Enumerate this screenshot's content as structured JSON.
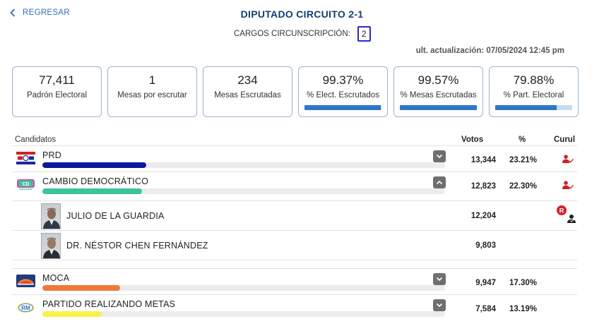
{
  "nav": {
    "back_label": "REGRESAR"
  },
  "header": {
    "title": "DIPUTADO CIRCUITO 2-1",
    "cargos_label": "CARGOS CIRCUNSCRIPCIÓN:",
    "cargos_value": "2",
    "updated": "ult. actualización: 07/05/2024 12:45 pm"
  },
  "stats": [
    {
      "value": "77,411",
      "label": "Padrón Electoral"
    },
    {
      "value": "1",
      "label": "Mesas por escrutar"
    },
    {
      "value": "234",
      "label": "Mesas Escrutadas"
    },
    {
      "value": "99.37%",
      "label": "% Elect. Escrutados",
      "progress": 0.9937
    },
    {
      "value": "99.57%",
      "label": "% Mesas Escrutadas",
      "progress": 0.9957
    },
    {
      "value": "79.88%",
      "label": "% Part. Electoral",
      "progress": 0.7988
    }
  ],
  "table": {
    "col_candidatos": "Candidatos",
    "col_votos": "Votos",
    "col_pct": "%",
    "col_curul": "Curul"
  },
  "parties": [
    {
      "name": "PRD",
      "votes": "13,344",
      "pct": "23.21%",
      "bar_fraction": 0.232,
      "bar_color": "#0a1a9a",
      "logo": "prd-flag-logo",
      "expanded": false,
      "curul_icon": "person-check-icon"
    },
    {
      "name": "CAMBIO DEMOCRÁTICO",
      "votes": "12,823",
      "pct": "22.30%",
      "bar_fraction": 0.223,
      "bar_color": "#3cc39b",
      "logo": "cd-logo",
      "expanded": true,
      "curul_icon": "person-check-icon",
      "candidates": [
        {
          "name": "JULIO DE LA GUARDIA",
          "votes": "12,204",
          "badge": "R",
          "badge_icon": "person-check-r-icon"
        },
        {
          "name": "DR. NÉSTOR CHEN FERNÁNDEZ",
          "votes": "9,803"
        }
      ]
    },
    {
      "name": "MOCA",
      "votes": "9,947",
      "pct": "17.30%",
      "bar_fraction": 0.173,
      "bar_color": "#ee7a3a",
      "logo": "moca-logo",
      "expanded": false
    },
    {
      "name": "PARTIDO REALIZANDO METAS",
      "votes": "7,584",
      "pct": "13.19%",
      "bar_fraction": 0.132,
      "bar_color": "#f7f24a",
      "logo": "rm-logo",
      "expanded": false
    }
  ],
  "colors": {
    "accent": "#2f6fb8",
    "title": "#123f73",
    "curul_red": "#cc2222"
  }
}
